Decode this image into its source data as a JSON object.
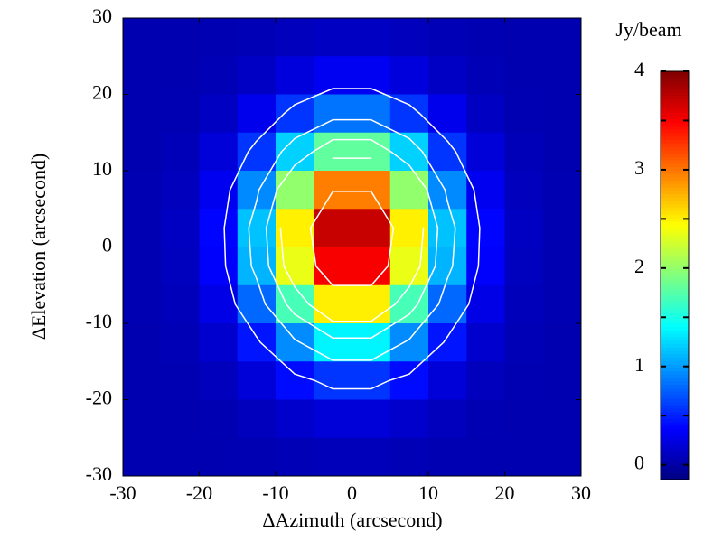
{
  "chart_data": {
    "type": "heatmap",
    "xlabel": "ΔAzimuth (arcsecond)",
    "ylabel": "ΔElevation (arcsecond)",
    "x": [
      -27.5,
      -22.5,
      -17.5,
      -12.5,
      -7.5,
      -2.5,
      2.5,
      7.5,
      12.5,
      17.5,
      22.5,
      27.5
    ],
    "y": [
      27.5,
      22.5,
      17.5,
      12.5,
      7.5,
      2.5,
      -2.5,
      -7.5,
      -12.5,
      -17.5,
      -22.5,
      -27.5
    ],
    "z": [
      [
        0.05,
        0.05,
        0.06,
        0.07,
        0.1,
        0.12,
        0.12,
        0.1,
        0.07,
        0.06,
        0.05,
        0.05
      ],
      [
        0.05,
        0.05,
        0.07,
        0.13,
        0.23,
        0.32,
        0.32,
        0.23,
        0.13,
        0.07,
        0.05,
        0.05
      ],
      [
        0.05,
        0.06,
        0.12,
        0.29,
        0.58,
        0.84,
        0.84,
        0.58,
        0.29,
        0.12,
        0.06,
        0.05
      ],
      [
        0.05,
        0.08,
        0.21,
        0.58,
        1.22,
        1.8,
        1.8,
        1.22,
        0.58,
        0.21,
        0.08,
        0.05
      ],
      [
        0.06,
        0.1,
        0.31,
        0.93,
        2.0,
        2.97,
        2.97,
        2.0,
        0.93,
        0.31,
        0.1,
        0.06
      ],
      [
        0.06,
        0.12,
        0.38,
        1.16,
        2.5,
        3.71,
        3.71,
        2.5,
        1.16,
        0.38,
        0.12,
        0.06
      ],
      [
        0.06,
        0.11,
        0.36,
        1.1,
        2.36,
        3.51,
        3.51,
        2.36,
        1.1,
        0.36,
        0.11,
        0.06
      ],
      [
        0.06,
        0.09,
        0.27,
        0.79,
        1.7,
        2.51,
        2.51,
        1.7,
        0.79,
        0.27,
        0.09,
        0.06
      ],
      [
        0.05,
        0.07,
        0.17,
        0.45,
        0.94,
        1.37,
        1.37,
        0.94,
        0.45,
        0.17,
        0.07,
        0.05
      ],
      [
        0.05,
        0.06,
        0.1,
        0.21,
        0.41,
        0.58,
        0.58,
        0.41,
        0.21,
        0.1,
        0.06,
        0.05
      ],
      [
        0.05,
        0.05,
        0.06,
        0.1,
        0.16,
        0.21,
        0.21,
        0.16,
        0.1,
        0.06,
        0.05,
        0.05
      ],
      [
        0.05,
        0.05,
        0.05,
        0.06,
        0.07,
        0.09,
        0.09,
        0.07,
        0.06,
        0.05,
        0.05,
        0.05
      ]
    ],
    "xlim": [
      -30,
      30
    ],
    "ylim": [
      -30,
      30
    ],
    "xticks": [
      -30,
      -20,
      -10,
      0,
      10,
      20,
      30
    ],
    "yticks": [
      -30,
      -20,
      -10,
      0,
      10,
      20,
      30
    ],
    "colormap": "jet",
    "clim": [
      -0.15,
      4
    ],
    "cticks": [
      0,
      1,
      2,
      3,
      4
    ],
    "colorbar_label": "Jy/beam",
    "contour_levels": [
      0.5,
      1,
      1.5,
      2,
      3
    ],
    "contour_color": "#ffffff"
  }
}
